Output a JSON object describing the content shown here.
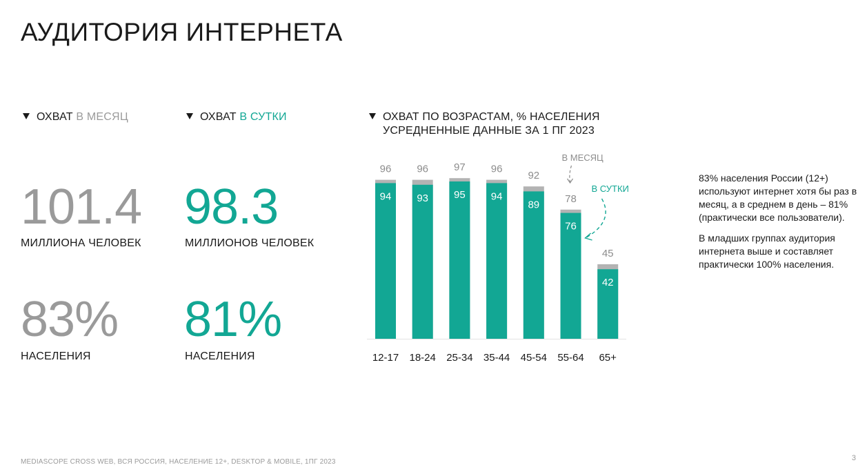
{
  "title": "АУДИТОРИЯ ИНТЕРНЕТА",
  "month_block": {
    "head_main": "ОХВАТ",
    "head_accent": "В МЕСЯЦ",
    "big_value": "101.4",
    "big_label": "МИЛЛИОНА ЧЕЛОВЕК",
    "pct_value": "83%",
    "pct_label": "НАСЕЛЕНИЯ"
  },
  "day_block": {
    "head_main": "ОХВАТ",
    "head_accent": "В СУТКИ",
    "big_value": "98.3",
    "big_label": "МИЛЛИОНОВ ЧЕЛОВЕК",
    "pct_value": "81%",
    "pct_label": "НАСЕЛЕНИЯ"
  },
  "chart_head": {
    "line1": "ОХВАТ ПО ВОЗРАСТАМ, % НАСЕЛЕНИЯ",
    "line2": "УСРЕДНЕННЫЕ ДАННЫЕ ЗА 1 ПГ 2023"
  },
  "chart_data": {
    "type": "bar",
    "categories": [
      "12-17",
      "18-24",
      "25-34",
      "35-44",
      "45-54",
      "55-64",
      "65+"
    ],
    "series": [
      {
        "name": "В МЕСЯЦ",
        "values": [
          96,
          96,
          97,
          96,
          92,
          78,
          45
        ],
        "color": "#b3b3b3"
      },
      {
        "name": "В СУТКИ",
        "values": [
          94,
          93,
          95,
          94,
          89,
          76,
          42
        ],
        "color": "#12a794"
      }
    ],
    "ylim": [
      0,
      100
    ],
    "grid": false,
    "annotations": {
      "month_label": "В МЕСЯЦ",
      "day_label": "В СУТКИ"
    }
  },
  "note": {
    "p1": "83% населения России (12+) используют интернет хотя бы раз в месяц, а в среднем в день – 81% (практически все пользователи).",
    "p2": "В младших группах аудитория интернета выше и составляет практически 100% населения."
  },
  "footer": "MEDIASCOPE CROSS WEB, ВСЯ РОССИЯ, НАСЕЛЕНИЕ 12+, DESKTOP & MOBILE, 1ПГ 2023",
  "page_number": "3",
  "colors": {
    "teal": "#12a794",
    "gray_bar": "#b3b3b3",
    "gray_text": "#9a9a9a",
    "dark": "#1a1a1a"
  }
}
